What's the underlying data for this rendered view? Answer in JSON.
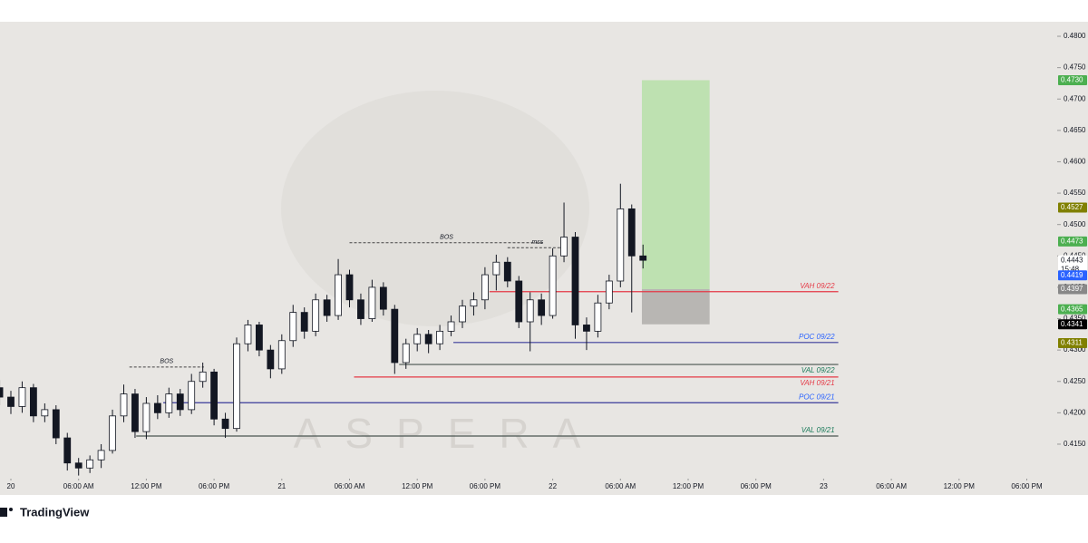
{
  "chart_data": {
    "type": "candlestick",
    "watermark": "ASPERA",
    "brand": "TradingView",
    "x": [
      -1,
      0,
      1,
      2,
      3,
      4,
      5,
      6,
      7,
      8,
      9,
      10,
      11,
      12,
      13,
      14,
      15,
      16,
      17,
      18,
      19,
      20,
      21,
      22,
      23,
      24,
      25,
      26,
      27,
      28,
      29,
      30,
      31,
      32,
      33,
      34,
      35,
      36,
      37,
      38,
      39,
      40,
      41,
      42,
      43,
      44,
      45,
      46,
      47,
      48,
      49,
      50,
      51,
      52,
      53,
      54,
      55,
      56
    ],
    "open": [
      0.424,
      0.4225,
      0.421,
      0.424,
      0.4195,
      0.4205,
      0.416,
      0.412,
      0.4112,
      0.4125,
      0.414,
      0.4195,
      0.423,
      0.417,
      0.4215,
      0.42,
      0.423,
      0.4205,
      0.425,
      0.4265,
      0.419,
      0.4175,
      0.431,
      0.434,
      0.43,
      0.427,
      0.4315,
      0.436,
      0.433,
      0.438,
      0.4355,
      0.442,
      0.438,
      0.435,
      0.44,
      0.4365,
      0.428,
      0.431,
      0.4325,
      0.431,
      0.433,
      0.4345,
      0.437,
      0.438,
      0.442,
      0.444,
      0.441,
      0.4345,
      0.438,
      0.4355,
      0.445,
      0.448,
      0.434,
      0.433,
      0.4375,
      0.441,
      0.4525,
      0.445
    ],
    "high": [
      0.4252,
      0.4235,
      0.425,
      0.4246,
      0.4215,
      0.4212,
      0.4168,
      0.4128,
      0.4132,
      0.415,
      0.4205,
      0.4245,
      0.4238,
      0.4225,
      0.4228,
      0.424,
      0.4238,
      0.4262,
      0.428,
      0.427,
      0.42,
      0.432,
      0.4348,
      0.4345,
      0.4308,
      0.4325,
      0.4372,
      0.4368,
      0.439,
      0.4388,
      0.4445,
      0.4428,
      0.439,
      0.4412,
      0.4408,
      0.4372,
      0.4318,
      0.4335,
      0.4332,
      0.434,
      0.4355,
      0.438,
      0.4392,
      0.4432,
      0.4452,
      0.4448,
      0.4418,
      0.4392,
      0.439,
      0.4462,
      0.4535,
      0.4488,
      0.4352,
      0.4388,
      0.442,
      0.4565,
      0.4532,
      0.4468
    ],
    "low": [
      0.4212,
      0.4198,
      0.42,
      0.4185,
      0.4185,
      0.415,
      0.4108,
      0.41,
      0.4104,
      0.4112,
      0.4135,
      0.4185,
      0.416,
      0.4158,
      0.419,
      0.4192,
      0.4195,
      0.4198,
      0.424,
      0.418,
      0.416,
      0.417,
      0.4298,
      0.429,
      0.4255,
      0.4262,
      0.4305,
      0.4318,
      0.4322,
      0.4345,
      0.4348,
      0.4368,
      0.434,
      0.4345,
      0.4355,
      0.4262,
      0.427,
      0.4298,
      0.4295,
      0.43,
      0.4322,
      0.4335,
      0.4355,
      0.4365,
      0.4395,
      0.44,
      0.4335,
      0.4298,
      0.434,
      0.435,
      0.444,
      0.4318,
      0.43,
      0.432,
      0.4365,
      0.44,
      0.436,
      0.443
    ],
    "close": [
      0.4225,
      0.421,
      0.424,
      0.4195,
      0.4205,
      0.416,
      0.412,
      0.4112,
      0.4125,
      0.414,
      0.4195,
      0.423,
      0.417,
      0.4215,
      0.42,
      0.423,
      0.4205,
      0.425,
      0.4265,
      0.419,
      0.4175,
      0.431,
      0.434,
      0.43,
      0.427,
      0.4315,
      0.436,
      0.433,
      0.438,
      0.4355,
      0.442,
      0.438,
      0.435,
      0.44,
      0.4365,
      0.428,
      0.431,
      0.4325,
      0.431,
      0.433,
      0.4345,
      0.437,
      0.438,
      0.442,
      0.444,
      0.441,
      0.4345,
      0.438,
      0.4355,
      0.445,
      0.448,
      0.434,
      0.433,
      0.4375,
      0.441,
      0.4525,
      0.445,
      0.4443
    ],
    "up_color": "#ffffff",
    "down_color": "#131722",
    "xlim": [
      -0.964,
      92.61
    ],
    "ylim": [
      0.40994,
      0.48217
    ],
    "xticks": [
      {
        "value": 0,
        "label": "20"
      },
      {
        "value": 6,
        "label": "06:00 AM"
      },
      {
        "value": 12,
        "label": "12:00 PM"
      },
      {
        "value": 18,
        "label": "06:00 PM"
      },
      {
        "value": 24,
        "label": "21"
      },
      {
        "value": 30,
        "label": "06:00 AM"
      },
      {
        "value": 36,
        "label": "12:00 PM"
      },
      {
        "value": 42,
        "label": "06:00 PM"
      },
      {
        "value": 48,
        "label": "22"
      },
      {
        "value": 54,
        "label": "06:00 AM"
      },
      {
        "value": 60,
        "label": "12:00 PM"
      },
      {
        "value": 66,
        "label": "06:00 PM"
      },
      {
        "value": 72,
        "label": "23"
      },
      {
        "value": 78,
        "label": "06:00 AM"
      },
      {
        "value": 84,
        "label": "12:00 PM"
      },
      {
        "value": 90,
        "label": "06:00 PM"
      }
    ],
    "yticks": [
      {
        "value": 0.415,
        "label": "0.4150"
      },
      {
        "value": 0.42,
        "label": "0.4200"
      },
      {
        "value": 0.425,
        "label": "0.4250"
      },
      {
        "value": 0.43,
        "label": "0.4300"
      },
      {
        "value": 0.435,
        "label": "0.4350"
      },
      {
        "value": 0.44,
        "label": "0.4400"
      },
      {
        "value": 0.445,
        "label": "0.4450"
      },
      {
        "value": 0.45,
        "label": "0.4500"
      },
      {
        "value": 0.455,
        "label": "0.4550"
      },
      {
        "value": 0.46,
        "label": "0.4600"
      },
      {
        "value": 0.465,
        "label": "0.4650"
      },
      {
        "value": 0.47,
        "label": "0.4700"
      },
      {
        "value": 0.475,
        "label": "0.4750"
      },
      {
        "value": 0.48,
        "label": "0.4800"
      }
    ],
    "levels": [
      {
        "label": "VAH 09/22",
        "value": 0.4393,
        "x": [
          42.4,
          73.3
        ],
        "color": "#e53946",
        "text_color": "#e53946",
        "label_pos": "above"
      },
      {
        "label": "POC 09/22",
        "value": 0.4312,
        "x": [
          39.2,
          73.3
        ],
        "color": "#3a3a9a",
        "text_color": "#2962ff",
        "label_pos": "above"
      },
      {
        "label": "VAL 09/22",
        "value": 0.4277,
        "x": [
          34.4,
          73.3
        ],
        "color": "#4a5550",
        "text_color": "#1b7a5a",
        "label_pos": "below"
      },
      {
        "label": "VAH 09/21",
        "value": 0.4257,
        "x": [
          30.4,
          73.3
        ],
        "color": "#e53946",
        "text_color": "#e53946",
        "label_pos": "below"
      },
      {
        "label": "POC 09/21",
        "value": 0.4216,
        "x": [
          13.5,
          73.3
        ],
        "color": "#3a3a9a",
        "text_color": "#2962ff",
        "label_pos": "above"
      },
      {
        "label": "VAL 09/21",
        "value": 0.4163,
        "x": [
          11.1,
          73.3
        ],
        "color": "#4a5550",
        "text_color": "#1b7a5a",
        "label_pos": "above"
      }
    ],
    "annotations": [
      {
        "text": "BOS",
        "value": 0.4273,
        "x": [
          10.5,
          17.1
        ]
      },
      {
        "text": "BOS",
        "value": 0.4471,
        "x": [
          30,
          47.2
        ]
      },
      {
        "text": "mss",
        "value": 0.4463,
        "x": [
          44,
          49.3
        ]
      }
    ],
    "position": {
      "target": 0.473,
      "entry": 0.4397,
      "stop": 0.4341,
      "x": [
        55.9,
        61.9
      ]
    },
    "price_tags": [
      {
        "value": 0.473,
        "label": "0.4730",
        "bg": "#4caf50",
        "fg": "#ffffff"
      },
      {
        "value": 0.4527,
        "label": "0.4527",
        "bg": "#808000",
        "fg": "#ffffff"
      },
      {
        "value": 0.4473,
        "label": "0.4473",
        "bg": "#4caf50",
        "fg": "#ffffff"
      },
      {
        "value": 0.4443,
        "label": "0.4443",
        "bg": "#ffffff",
        "fg": "#131722",
        "sub": "15:48"
      },
      {
        "value": 0.4419,
        "label": "0.4419",
        "bg": "#2962ff",
        "fg": "#ffffff"
      },
      {
        "value": 0.4397,
        "label": "0.4397",
        "bg": "#888888",
        "fg": "#ffffff"
      },
      {
        "value": 0.4365,
        "label": "0.4365",
        "bg": "#4caf50",
        "fg": "#ffffff"
      },
      {
        "value": 0.4341,
        "label": "0.4341",
        "bg": "#000000",
        "fg": "#ffffff"
      },
      {
        "value": 0.4311,
        "label": "0.4311",
        "bg": "#808000",
        "fg": "#ffffff"
      }
    ]
  }
}
